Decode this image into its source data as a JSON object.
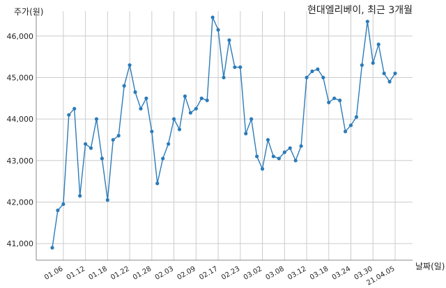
{
  "chart_data": {
    "type": "line",
    "title": "현대엘리베이, 최근 3개월",
    "ylabel": "주가(원)",
    "xlabel": "날짜(일)",
    "ylim": [
      40600,
      46600
    ],
    "yticks": [
      41000,
      42000,
      43000,
      44000,
      45000,
      46000
    ],
    "ytick_labels": [
      "41,000",
      "42,000",
      "43,000",
      "44,000",
      "45,000",
      "46,000"
    ],
    "xtick_indices": [
      2,
      6,
      10,
      14,
      18,
      22,
      26,
      30,
      34,
      38,
      42,
      46,
      50,
      54,
      58,
      62
    ],
    "xtick_labels": [
      "01.06",
      "01.12",
      "01.18",
      "01.22",
      "01.28",
      "02.03",
      "02.09",
      "02.17",
      "02.23",
      "03.02",
      "03.08",
      "03.12",
      "03.18",
      "03.24",
      "03.30",
      "21.04.05"
    ],
    "grid": true,
    "color": "#2b7bb9",
    "series": [
      {
        "values": [
          40900,
          41800,
          41950,
          44100,
          44250,
          42150,
          43400,
          43300,
          44000,
          43050,
          42050,
          43500,
          43600,
          44800,
          45300,
          44650,
          44250,
          44500,
          43700,
          42450,
          43050,
          43400,
          44000,
          43750,
          44550,
          44150,
          44250,
          44500,
          44450,
          46450,
          46150,
          45000,
          45900,
          45250,
          45250,
          43650,
          44000,
          43100,
          42800,
          43500,
          43100,
          43050,
          43200,
          43300,
          43000,
          43350,
          45000,
          45150,
          45200,
          45000,
          44400,
          44500,
          44450,
          43700,
          43850,
          44050,
          45300,
          46350,
          45350,
          45800,
          45100,
          44900,
          45100
        ]
      }
    ]
  }
}
